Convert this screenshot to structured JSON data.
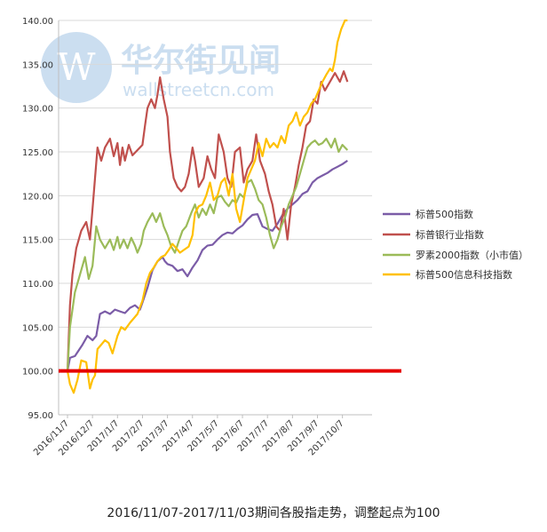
{
  "watermark": {
    "brand": "华尔街见闻",
    "domain": "wallstreetcn.com",
    "logo_letter": "W",
    "color": "#c3d9ee"
  },
  "caption": "2016/11/07-2017/11/03期间各股指走势，调整起点为100",
  "chart_data": {
    "type": "line",
    "y_ticks": [
      "95.00",
      "100.00",
      "105.00",
      "110.00",
      "115.00",
      "120.00",
      "125.00",
      "130.00",
      "135.00",
      "140.00"
    ],
    "x_ticks": [
      "2016/11/7",
      "2016/12/7",
      "2017/1/7",
      "2017/2/7",
      "2017/3/7",
      "2017/4/7",
      "2017/5/7",
      "2017/6/7",
      "2017/7/7",
      "2017/8/7",
      "2017/9/7",
      "2017/10/7"
    ],
    "ylim": [
      95,
      140
    ],
    "grid": true,
    "legend_position": "right",
    "reference_line": {
      "value": 100,
      "color": "#e50000"
    },
    "series": [
      {
        "name": "标普500指数",
        "color": "#7b5ca7",
        "points": [
          [
            0,
            100
          ],
          [
            0.1,
            101.5
          ],
          [
            0.3,
            101.7
          ],
          [
            0.6,
            103
          ],
          [
            0.8,
            104
          ],
          [
            1.0,
            103.5
          ],
          [
            1.15,
            104
          ],
          [
            1.3,
            106.5
          ],
          [
            1.5,
            106.8
          ],
          [
            1.7,
            106.5
          ],
          [
            1.9,
            107
          ],
          [
            2.1,
            106.8
          ],
          [
            2.3,
            106.6
          ],
          [
            2.5,
            107.2
          ],
          [
            2.7,
            107.5
          ],
          [
            2.9,
            107
          ],
          [
            3.0,
            107.8
          ],
          [
            3.2,
            109.5
          ],
          [
            3.4,
            111.5
          ],
          [
            3.6,
            112.5
          ],
          [
            3.8,
            113
          ],
          [
            3.9,
            112.5
          ],
          [
            4.0,
            112.2
          ],
          [
            4.2,
            112
          ],
          [
            4.4,
            111.4
          ],
          [
            4.6,
            111.6
          ],
          [
            4.8,
            110.8
          ],
          [
            5.0,
            111.8
          ],
          [
            5.2,
            112.6
          ],
          [
            5.4,
            113.8
          ],
          [
            5.6,
            114.3
          ],
          [
            5.8,
            114.4
          ],
          [
            6.0,
            115
          ],
          [
            6.2,
            115.5
          ],
          [
            6.4,
            115.8
          ],
          [
            6.6,
            115.7
          ],
          [
            6.8,
            116.2
          ],
          [
            7.0,
            116.6
          ],
          [
            7.2,
            117.3
          ],
          [
            7.4,
            117.8
          ],
          [
            7.6,
            117.9
          ],
          [
            7.8,
            116.5
          ],
          [
            8.0,
            116.2
          ],
          [
            8.2,
            116
          ],
          [
            8.4,
            116.8
          ],
          [
            8.6,
            117.8
          ],
          [
            8.8,
            118.5
          ],
          [
            9.0,
            119
          ],
          [
            9.2,
            119.5
          ],
          [
            9.4,
            120.2
          ],
          [
            9.6,
            120.5
          ],
          [
            9.8,
            121.5
          ],
          [
            10.0,
            122
          ],
          [
            10.2,
            122.3
          ],
          [
            10.4,
            122.6
          ],
          [
            10.6,
            123
          ],
          [
            10.8,
            123.3
          ],
          [
            11.0,
            123.6
          ],
          [
            11.2,
            124
          ]
        ]
      },
      {
        "name": "标普银行业指数",
        "color": "#c0504d",
        "points": [
          [
            0,
            100
          ],
          [
            0.1,
            107.5
          ],
          [
            0.2,
            111
          ],
          [
            0.35,
            114
          ],
          [
            0.55,
            116
          ],
          [
            0.75,
            117
          ],
          [
            0.9,
            115
          ],
          [
            1.0,
            118.5
          ],
          [
            1.1,
            122
          ],
          [
            1.2,
            125.5
          ],
          [
            1.35,
            124
          ],
          [
            1.5,
            125.5
          ],
          [
            1.7,
            126.5
          ],
          [
            1.85,
            124.5
          ],
          [
            2.0,
            126
          ],
          [
            2.1,
            123.5
          ],
          [
            2.2,
            125.5
          ],
          [
            2.3,
            124
          ],
          [
            2.45,
            125.8
          ],
          [
            2.6,
            124.6
          ],
          [
            2.8,
            125.2
          ],
          [
            3.0,
            125.8
          ],
          [
            3.1,
            128
          ],
          [
            3.2,
            130
          ],
          [
            3.35,
            131
          ],
          [
            3.5,
            130
          ],
          [
            3.6,
            131.5
          ],
          [
            3.7,
            133.5
          ],
          [
            3.85,
            131
          ],
          [
            4.0,
            129
          ],
          [
            4.1,
            125
          ],
          [
            4.25,
            122
          ],
          [
            4.4,
            121
          ],
          [
            4.55,
            120.5
          ],
          [
            4.7,
            121
          ],
          [
            4.85,
            122.5
          ],
          [
            5.0,
            125.5
          ],
          [
            5.1,
            124
          ],
          [
            5.25,
            121
          ],
          [
            5.45,
            122
          ],
          [
            5.6,
            124.5
          ],
          [
            5.75,
            123
          ],
          [
            5.9,
            122
          ],
          [
            6.05,
            127
          ],
          [
            6.25,
            125
          ],
          [
            6.4,
            122
          ],
          [
            6.55,
            121
          ],
          [
            6.7,
            125
          ],
          [
            6.9,
            125.5
          ],
          [
            7.05,
            121.5
          ],
          [
            7.2,
            123
          ],
          [
            7.4,
            124
          ],
          [
            7.55,
            127
          ],
          [
            7.7,
            124
          ],
          [
            7.9,
            122.5
          ],
          [
            8.05,
            120.5
          ],
          [
            8.2,
            119
          ],
          [
            8.35,
            116.5
          ],
          [
            8.5,
            116
          ],
          [
            8.65,
            118.5
          ],
          [
            8.8,
            115
          ],
          [
            8.95,
            119
          ],
          [
            9.1,
            121
          ],
          [
            9.25,
            123.5
          ],
          [
            9.4,
            125.5
          ],
          [
            9.55,
            128
          ],
          [
            9.7,
            128.5
          ],
          [
            9.85,
            131
          ],
          [
            10.0,
            130.5
          ],
          [
            10.15,
            133
          ],
          [
            10.3,
            132
          ],
          [
            10.5,
            133
          ],
          [
            10.7,
            134
          ],
          [
            10.9,
            133
          ],
          [
            11.05,
            134.2
          ],
          [
            11.2,
            133
          ]
        ]
      },
      {
        "name": "罗素2000指数（小市值）",
        "color": "#9bbb59",
        "points": [
          [
            0,
            100
          ],
          [
            0.1,
            105
          ],
          [
            0.3,
            109
          ],
          [
            0.5,
            111
          ],
          [
            0.7,
            113
          ],
          [
            0.85,
            110.5
          ],
          [
            1.0,
            112
          ],
          [
            1.15,
            116.5
          ],
          [
            1.3,
            115
          ],
          [
            1.5,
            114
          ],
          [
            1.7,
            115
          ],
          [
            1.85,
            113.8
          ],
          [
            2.0,
            115.3
          ],
          [
            2.1,
            114
          ],
          [
            2.25,
            115
          ],
          [
            2.4,
            114
          ],
          [
            2.55,
            115.2
          ],
          [
            2.7,
            114.3
          ],
          [
            2.8,
            113.5
          ],
          [
            2.95,
            114.5
          ],
          [
            3.05,
            116
          ],
          [
            3.2,
            117
          ],
          [
            3.4,
            118
          ],
          [
            3.55,
            117
          ],
          [
            3.7,
            118
          ],
          [
            3.85,
            116.5
          ],
          [
            4.0,
            115.5
          ],
          [
            4.15,
            114.2
          ],
          [
            4.3,
            113.5
          ],
          [
            4.45,
            114.8
          ],
          [
            4.6,
            116
          ],
          [
            4.75,
            116.5
          ],
          [
            4.95,
            118
          ],
          [
            5.1,
            119
          ],
          [
            5.25,
            117.5
          ],
          [
            5.4,
            118.5
          ],
          [
            5.55,
            117.8
          ],
          [
            5.7,
            119
          ],
          [
            5.85,
            118
          ],
          [
            6.0,
            119.8
          ],
          [
            6.15,
            120
          ],
          [
            6.3,
            119.3
          ],
          [
            6.45,
            118.8
          ],
          [
            6.6,
            119.5
          ],
          [
            6.75,
            119.2
          ],
          [
            6.9,
            120.2
          ],
          [
            7.05,
            119.8
          ],
          [
            7.2,
            121.5
          ],
          [
            7.35,
            121.8
          ],
          [
            7.5,
            120.8
          ],
          [
            7.65,
            119.5
          ],
          [
            7.8,
            119
          ],
          [
            7.95,
            117.5
          ],
          [
            8.1,
            115.5
          ],
          [
            8.25,
            114
          ],
          [
            8.4,
            115
          ],
          [
            8.55,
            116.5
          ],
          [
            8.7,
            117.5
          ],
          [
            8.85,
            119
          ],
          [
            9.0,
            120
          ],
          [
            9.15,
            121
          ],
          [
            9.3,
            122.5
          ],
          [
            9.45,
            124
          ],
          [
            9.6,
            125.5
          ],
          [
            9.75,
            126
          ],
          [
            9.9,
            126.3
          ],
          [
            10.05,
            125.8
          ],
          [
            10.2,
            126
          ],
          [
            10.35,
            126.5
          ],
          [
            10.55,
            125.5
          ],
          [
            10.7,
            126.5
          ],
          [
            10.85,
            125
          ],
          [
            11.0,
            125.8
          ],
          [
            11.2,
            125.2
          ]
        ]
      },
      {
        "name": "标普500信息科技指数",
        "color": "#ffc000",
        "points": [
          [
            0,
            100
          ],
          [
            0.1,
            98.5
          ],
          [
            0.25,
            97.5
          ],
          [
            0.4,
            99
          ],
          [
            0.55,
            101.2
          ],
          [
            0.75,
            101
          ],
          [
            0.9,
            98
          ],
          [
            1.0,
            99
          ],
          [
            1.1,
            99.5
          ],
          [
            1.2,
            102.5
          ],
          [
            1.35,
            103
          ],
          [
            1.5,
            103.5
          ],
          [
            1.65,
            103.2
          ],
          [
            1.8,
            102
          ],
          [
            2.0,
            104
          ],
          [
            2.15,
            105
          ],
          [
            2.3,
            104.7
          ],
          [
            2.5,
            105.5
          ],
          [
            2.65,
            106
          ],
          [
            2.8,
            106.5
          ],
          [
            3.0,
            108
          ],
          [
            3.15,
            110
          ],
          [
            3.3,
            111.2
          ],
          [
            3.45,
            111.8
          ],
          [
            3.6,
            112.5
          ],
          [
            3.75,
            113
          ],
          [
            3.9,
            113.2
          ],
          [
            4.05,
            113.8
          ],
          [
            4.2,
            114.5
          ],
          [
            4.35,
            114
          ],
          [
            4.5,
            113.5
          ],
          [
            4.65,
            113.8
          ],
          [
            4.85,
            114.2
          ],
          [
            5.0,
            115.5
          ],
          [
            5.1,
            118
          ],
          [
            5.25,
            118.8
          ],
          [
            5.4,
            119
          ],
          [
            5.55,
            120
          ],
          [
            5.7,
            121.5
          ],
          [
            5.85,
            119.5
          ],
          [
            6.0,
            120
          ],
          [
            6.15,
            121.5
          ],
          [
            6.3,
            122
          ],
          [
            6.45,
            120
          ],
          [
            6.6,
            122.5
          ],
          [
            6.75,
            118.5
          ],
          [
            6.9,
            117
          ],
          [
            7.05,
            119.5
          ],
          [
            7.2,
            122
          ],
          [
            7.35,
            123
          ],
          [
            7.5,
            124
          ],
          [
            7.65,
            126
          ],
          [
            7.8,
            124.5
          ],
          [
            7.95,
            126.5
          ],
          [
            8.1,
            125.5
          ],
          [
            8.25,
            126
          ],
          [
            8.4,
            125.5
          ],
          [
            8.55,
            126.8
          ],
          [
            8.7,
            126
          ],
          [
            8.85,
            128
          ],
          [
            9.0,
            128.5
          ],
          [
            9.15,
            129.5
          ],
          [
            9.3,
            128
          ],
          [
            9.45,
            129
          ],
          [
            9.6,
            129.5
          ],
          [
            9.75,
            130.5
          ],
          [
            9.9,
            131
          ],
          [
            10.05,
            132
          ],
          [
            10.2,
            133
          ],
          [
            10.35,
            133.8
          ],
          [
            10.5,
            134.5
          ],
          [
            10.6,
            134.2
          ],
          [
            10.7,
            135.5
          ],
          [
            10.8,
            137.5
          ],
          [
            10.95,
            139
          ],
          [
            11.1,
            140
          ],
          [
            11.2,
            140
          ]
        ]
      }
    ]
  }
}
